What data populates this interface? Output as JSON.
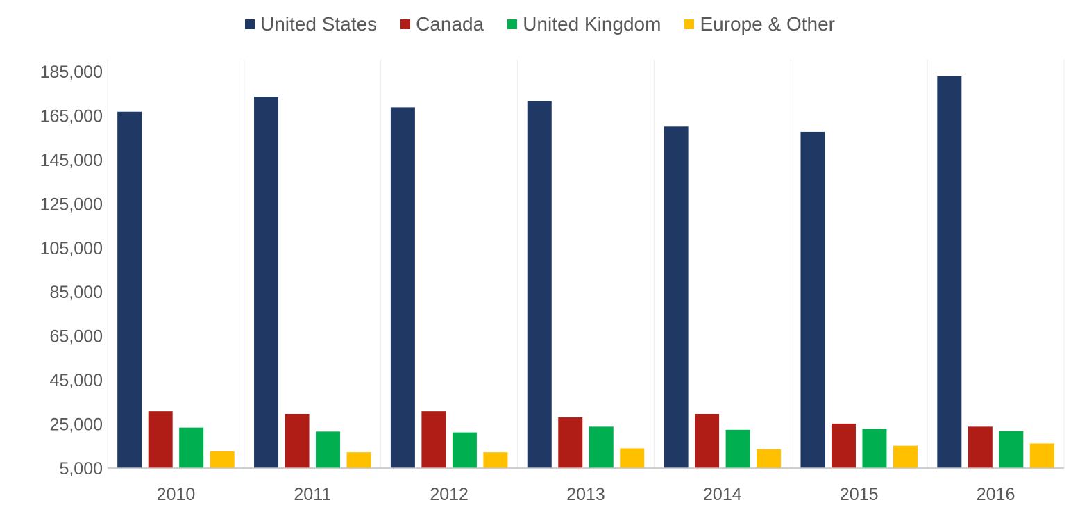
{
  "chart_data": {
    "type": "bar",
    "title": "",
    "xlabel": "",
    "ylabel": "",
    "categories": [
      "2010",
      "2011",
      "2012",
      "2013",
      "2014",
      "2015",
      "2016"
    ],
    "series": [
      {
        "name": "United States",
        "color": "#203864",
        "values": [
          166800,
          173600,
          168800,
          171600,
          160000,
          157600,
          182800
        ]
      },
      {
        "name": "Canada",
        "color": "#B01C16",
        "values": [
          30800,
          29600,
          30800,
          28000,
          29600,
          25200,
          23800
        ]
      },
      {
        "name": "United Kingdom",
        "color": "#00B050",
        "values": [
          23400,
          21600,
          21200,
          23800,
          22400,
          22800,
          21800
        ]
      },
      {
        "name": "Europe & Other",
        "color": "#FFC000",
        "values": [
          12600,
          12200,
          12200,
          14000,
          13600,
          15200,
          16200
        ]
      }
    ],
    "ylim": [
      5000,
      185000
    ],
    "yticks": [
      5000,
      25000,
      45000,
      65000,
      85000,
      105000,
      125000,
      145000,
      165000,
      185000
    ],
    "ytick_labels": [
      "5,000",
      "25,000",
      "45,000",
      "65,000",
      "85,000",
      "105,000",
      "125,000",
      "145,000",
      "165,000",
      "185,000"
    ],
    "grid": "vertical",
    "legend": "top-center"
  }
}
